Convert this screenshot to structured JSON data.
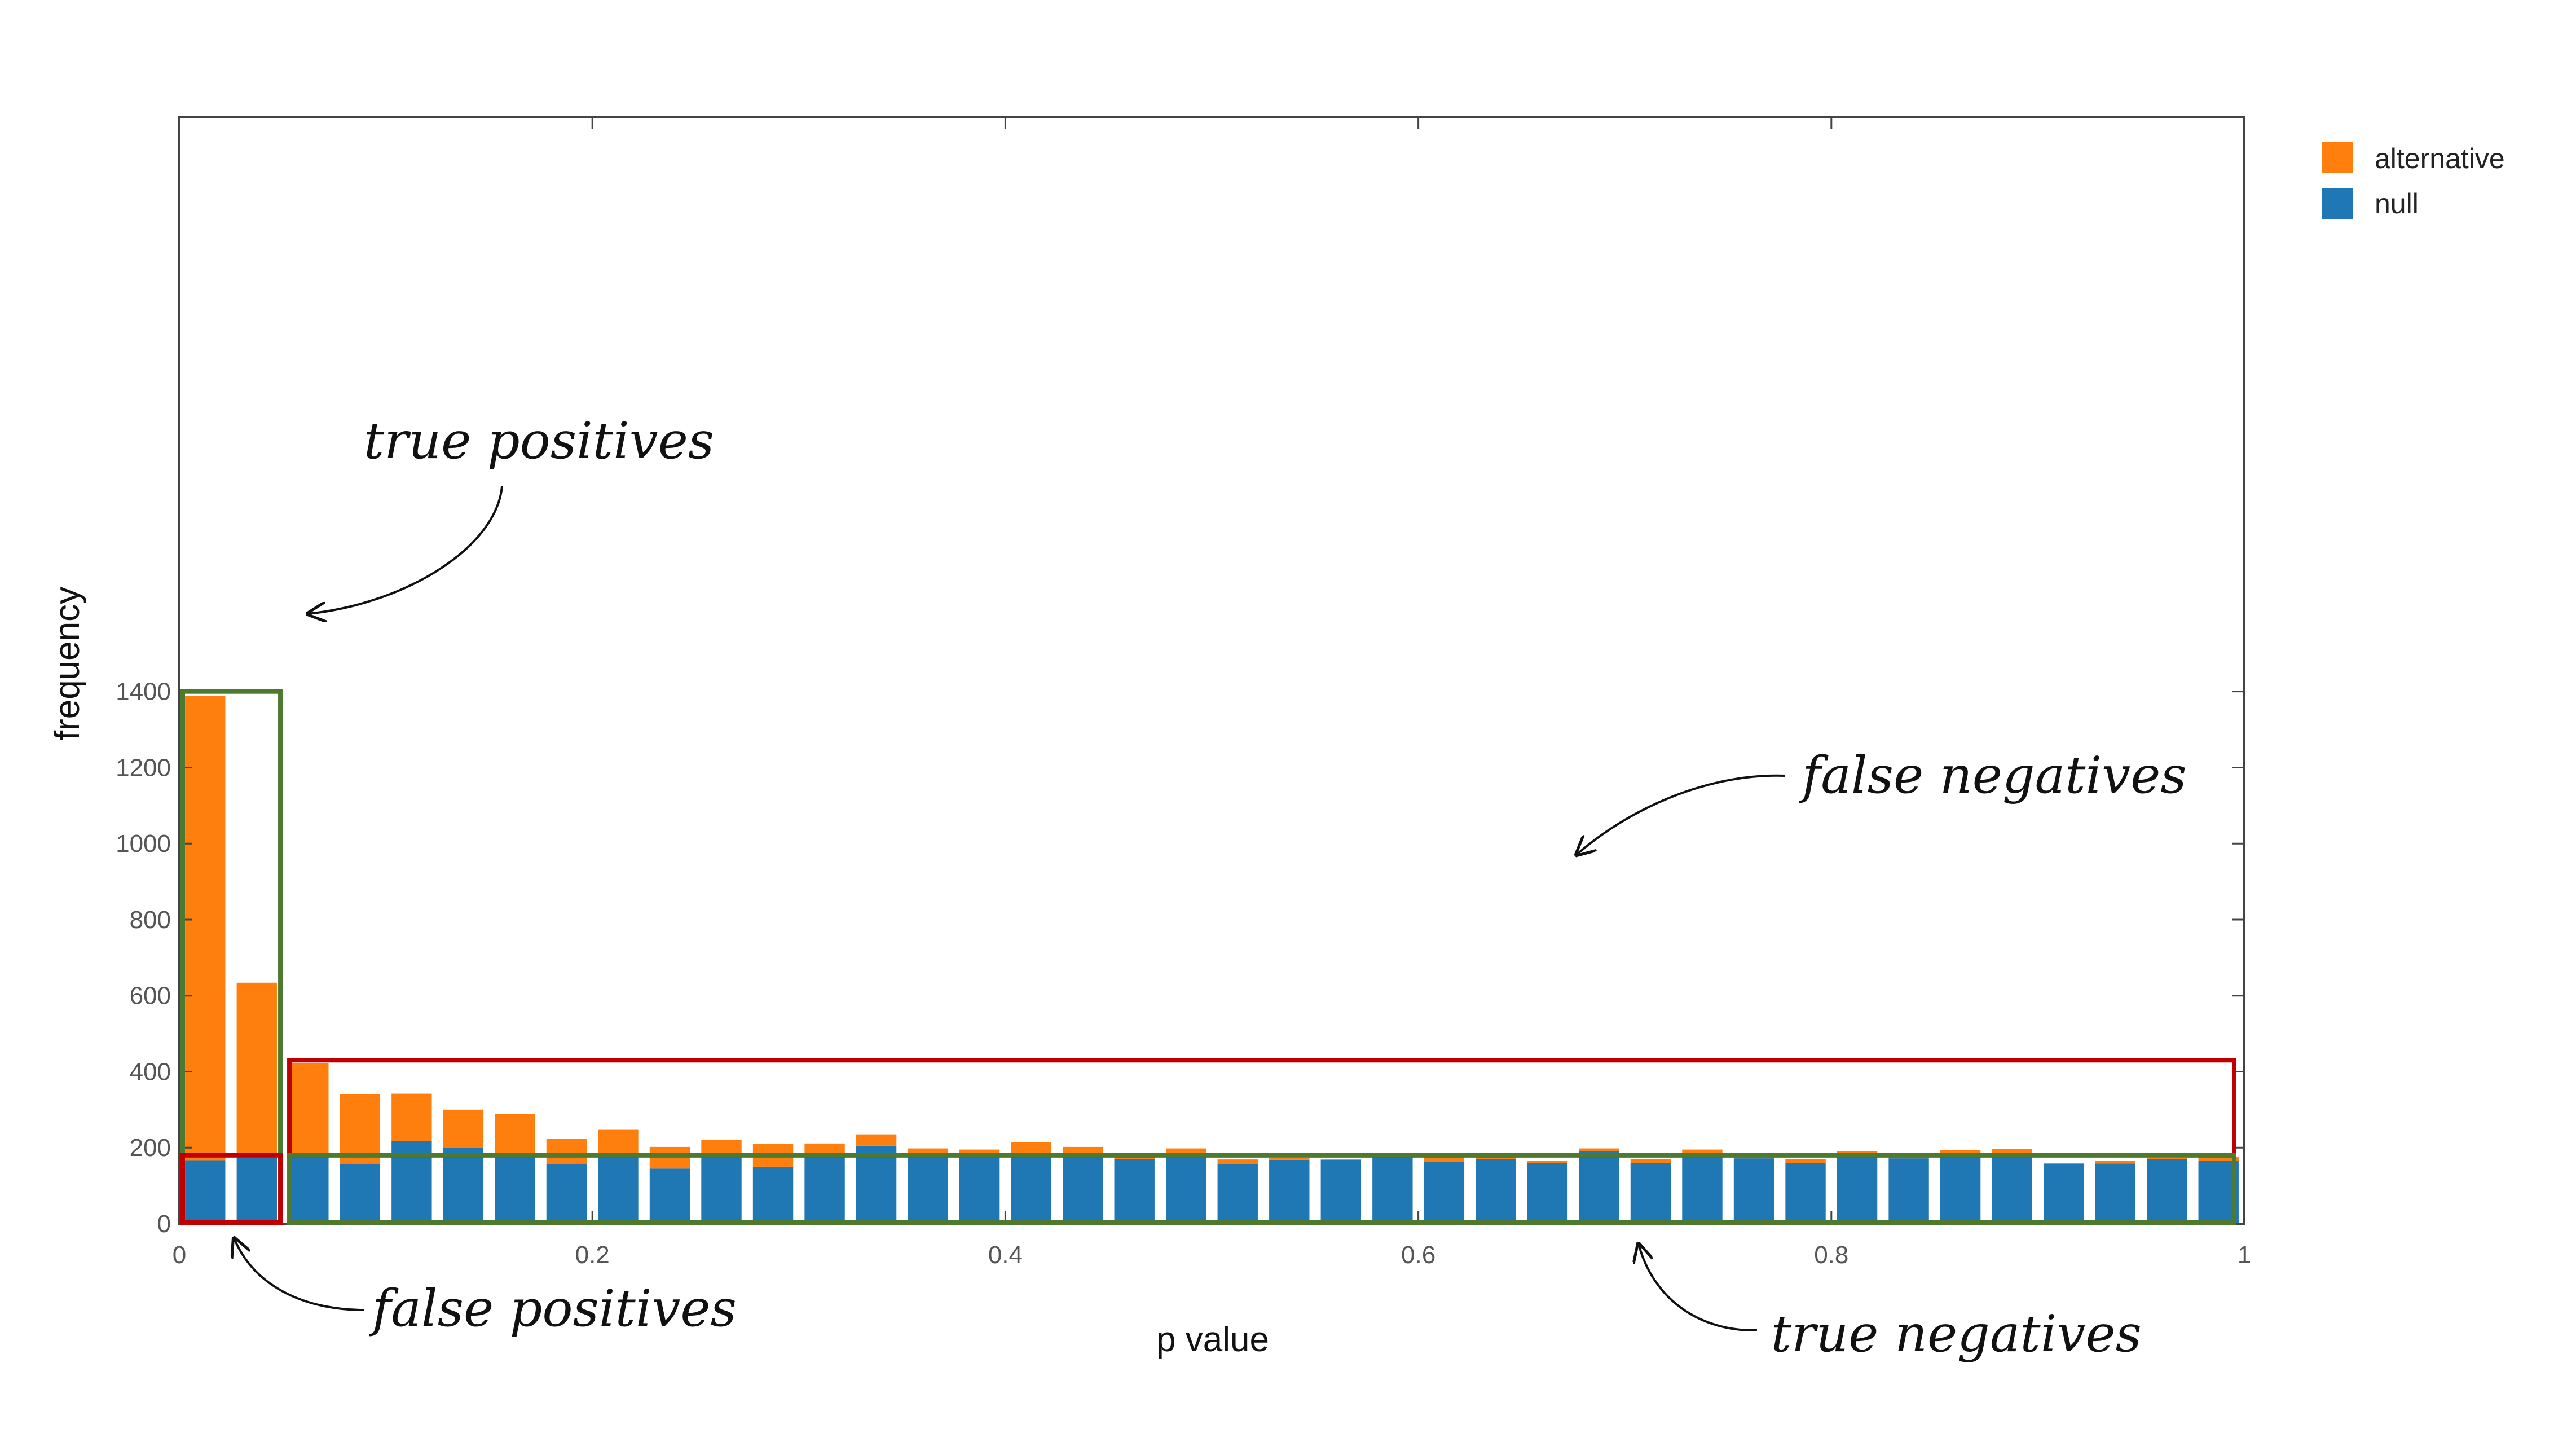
{
  "chart_data": {
    "type": "bar",
    "stacked": true,
    "xlabel": "p value",
    "ylabel": "frequency",
    "xlim": [
      0,
      1
    ],
    "ylim": [
      0,
      1460
    ],
    "xticks": [
      0,
      0.2,
      0.4,
      0.6,
      0.8,
      1
    ],
    "xtick_labels": [
      "0",
      "0.2",
      "0.4",
      "0.6",
      "0.8",
      "1"
    ],
    "yticks": [
      0,
      200,
      400,
      600,
      800,
      1000,
      1200,
      1400
    ],
    "ytick_labels": [
      "0",
      "200",
      "400",
      "600",
      "800",
      "1000",
      "1200",
      "1400"
    ],
    "bin_width": 0.025,
    "x": [
      0.0125,
      0.0375,
      0.0625,
      0.0875,
      0.1125,
      0.1375,
      0.1625,
      0.1875,
      0.2125,
      0.2375,
      0.2625,
      0.2875,
      0.3125,
      0.3375,
      0.3625,
      0.3875,
      0.4125,
      0.4375,
      0.4625,
      0.4875,
      0.5125,
      0.5375,
      0.5625,
      0.5875,
      0.6125,
      0.6375,
      0.6625,
      0.6875,
      0.7125,
      0.7375,
      0.7625,
      0.7875,
      0.8125,
      0.8375,
      0.8625,
      0.8875,
      0.9125,
      0.9375,
      0.9625,
      0.9875
    ],
    "series": [
      {
        "name": "null",
        "color": "#1f77b4",
        "values": [
          167,
          185,
          185,
          157,
          218,
          200,
          178,
          157,
          178,
          145,
          180,
          150,
          178,
          205,
          178,
          175,
          178,
          180,
          170,
          178,
          157,
          168,
          168,
          178,
          163,
          170,
          160,
          190,
          160,
          175,
          172,
          160,
          180,
          172,
          180,
          180,
          157,
          158,
          170,
          165
        ]
      },
      {
        "name": "alternative",
        "color": "#ff7f0e",
        "values": [
          1222,
          449,
          238,
          183,
          124,
          100,
          110,
          67,
          69,
          57,
          41,
          60,
          33,
          30,
          20,
          20,
          37,
          22,
          5,
          20,
          12,
          5,
          2,
          2,
          15,
          8,
          6,
          8,
          10,
          20,
          3,
          10,
          10,
          7,
          13,
          17,
          2,
          7,
          3,
          10
        ]
      }
    ],
    "legend": {
      "placement": "outside-top-right",
      "entries": [
        {
          "label": "alternative",
          "color": "#ff7f0e"
        },
        {
          "label": "null",
          "color": "#1f77b4"
        }
      ]
    },
    "annotations": [
      {
        "text": "true positives",
        "box_color": "#4e7a2f",
        "region": {
          "x": [
            0,
            0.05
          ],
          "y": [
            180,
            1400
          ]
        }
      },
      {
        "text": "false positives",
        "box_color": "#c00000",
        "region": {
          "x": [
            0,
            0.05
          ],
          "y": [
            0,
            180
          ]
        }
      },
      {
        "text": "false negatives",
        "box_color": "#c00000",
        "region": {
          "x": [
            0.05,
            1
          ],
          "y": [
            180,
            430
          ]
        }
      },
      {
        "text": "true negatives",
        "box_color": "#4e7a2f",
        "region": {
          "x": [
            0.05,
            1
          ],
          "y": [
            0,
            180
          ]
        }
      }
    ],
    "grid": false
  }
}
